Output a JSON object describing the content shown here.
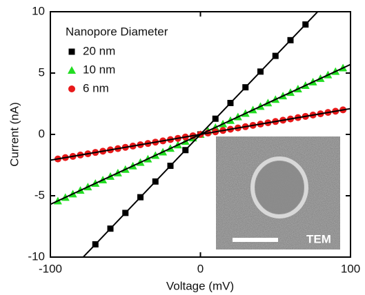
{
  "chart_data": {
    "type": "scatter",
    "xlabel": "Voltage (mV)",
    "ylabel": "Current (nA)",
    "xlim": [
      -100,
      100
    ],
    "ylim": [
      -10,
      10
    ],
    "xticks": [
      -100,
      0,
      100
    ],
    "yticks": [
      -10,
      -5,
      0,
      5,
      10
    ],
    "legend_title": "Nanopore Diameter",
    "legend": "upper left",
    "annotation": "TEM",
    "series": [
      {
        "name": "20 nm",
        "color": "#000000",
        "marker": "square",
        "x": [
          -70,
          -60,
          -50,
          -40,
          -30,
          -20,
          -10,
          0,
          10,
          20,
          30,
          40,
          50,
          60,
          70
        ],
        "values": [
          -8.96,
          -7.68,
          -6.4,
          -5.12,
          -3.84,
          -2.56,
          -1.28,
          0,
          1.28,
          2.56,
          3.84,
          5.12,
          6.4,
          7.68,
          8.96
        ],
        "fit_x": [
          -100,
          100
        ],
        "fit_values": [
          -12.8,
          12.8
        ]
      },
      {
        "name": "10 nm",
        "color": "#22dd22",
        "marker": "triangle",
        "x": [
          -95,
          -90,
          -85,
          -80,
          -75,
          -70,
          -65,
          -60,
          -55,
          -50,
          -45,
          -40,
          -35,
          -30,
          -25,
          -20,
          -15,
          -10,
          -5,
          0,
          5,
          10,
          15,
          20,
          25,
          30,
          35,
          40,
          45,
          50,
          55,
          60,
          65,
          70,
          75,
          80,
          85,
          90,
          95
        ],
        "values": [
          -5.42,
          -5.13,
          -4.85,
          -4.56,
          -4.28,
          -3.99,
          -3.71,
          -3.42,
          -3.14,
          -2.85,
          -2.57,
          -2.28,
          -2.0,
          -1.71,
          -1.43,
          -1.14,
          -0.86,
          -0.57,
          -0.29,
          0,
          0.29,
          0.57,
          0.86,
          1.14,
          1.43,
          1.71,
          2.0,
          2.28,
          2.57,
          2.85,
          3.14,
          3.42,
          3.71,
          3.99,
          4.28,
          4.56,
          4.85,
          5.13,
          5.42
        ],
        "fit_x": [
          -100,
          100
        ],
        "fit_values": [
          -5.7,
          5.7
        ]
      },
      {
        "name": "6 nm",
        "color": "#e8191a",
        "marker": "circle",
        "x": [
          -95,
          -90,
          -85,
          -80,
          -75,
          -70,
          -65,
          -60,
          -55,
          -50,
          -45,
          -40,
          -35,
          -30,
          -25,
          -20,
          -15,
          -10,
          -5,
          0,
          5,
          10,
          15,
          20,
          25,
          30,
          35,
          40,
          45,
          50,
          55,
          60,
          65,
          70,
          75,
          80,
          85,
          90,
          95
        ],
        "values": [
          -2.0,
          -1.89,
          -1.79,
          -1.68,
          -1.58,
          -1.47,
          -1.37,
          -1.26,
          -1.16,
          -1.05,
          -0.95,
          -0.84,
          -0.74,
          -0.63,
          -0.53,
          -0.42,
          -0.32,
          -0.21,
          -0.11,
          0,
          0.11,
          0.21,
          0.32,
          0.42,
          0.53,
          0.63,
          0.74,
          0.84,
          0.95,
          1.05,
          1.16,
          1.26,
          1.37,
          1.47,
          1.58,
          1.68,
          1.79,
          1.89,
          2.0
        ],
        "fit_x": [
          -100,
          100
        ],
        "fit_values": [
          -2.1,
          2.1
        ]
      }
    ]
  }
}
